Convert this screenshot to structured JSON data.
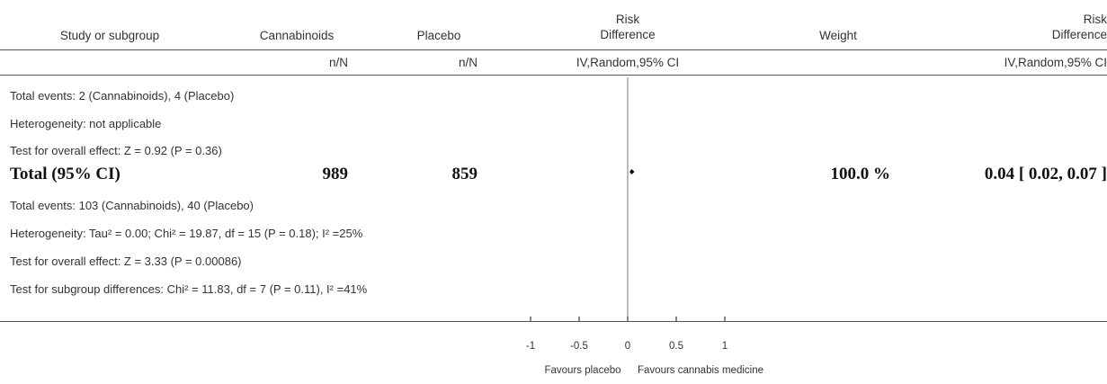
{
  "header": {
    "study_col": "Study or subgroup",
    "treat_col": "Cannabinoids",
    "ctrl_col": "Placebo",
    "rd_plot_col_line1": "Risk",
    "rd_plot_col_line2": "Difference",
    "weight_col": "Weight",
    "rd_col_line1": "Risk",
    "rd_col_line2": "Difference",
    "treat_sub": "n/N",
    "ctrl_sub": "n/N",
    "rd_plot_sub": "IV,Random,95% CI",
    "rd_sub": "IV,Random,95% CI"
  },
  "rows": {
    "sub_events": "Total events: 2 (Cannabinoids), 4 (Placebo)",
    "sub_het": "Heterogeneity: not applicable",
    "sub_test": "Test for overall effect: Z = 0.92 (P = 0.36)",
    "total_label": "Total (95% CI)",
    "total_treat": "989",
    "total_ctrl": "859",
    "total_weight": "100.0 %",
    "total_rd": "0.04 [ 0.02, 0.07 ]",
    "tot_events": "Total events: 103 (Cannabinoids), 40 (Placebo)",
    "tot_het": "Heterogeneity: Tau² = 0.00; Chi² = 19.87, df = 15 (P = 0.18); I² =25%",
    "tot_test": "Test for overall effect: Z = 3.33 (P = 0.00086)",
    "tot_subgroup": "Test for subgroup differences: Chi² = 11.83, df = 7 (P = 0.11), I² =41%"
  },
  "chart_data": {
    "type": "forest",
    "x_axis": {
      "range": [
        -1,
        1
      ],
      "ticks": [
        -1,
        -0.5,
        0,
        0.5,
        1
      ],
      "tick_labels": [
        "-1",
        "-0.5",
        "0",
        "0.5",
        "1"
      ],
      "left_label": "Favours placebo",
      "right_label": "Favours cannabis medicine"
    },
    "pooled": {
      "label": "Total (95% CI)",
      "estimate": 0.04,
      "ci_low": 0.02,
      "ci_high": 0.07,
      "weight_percent": 100.0
    }
  }
}
